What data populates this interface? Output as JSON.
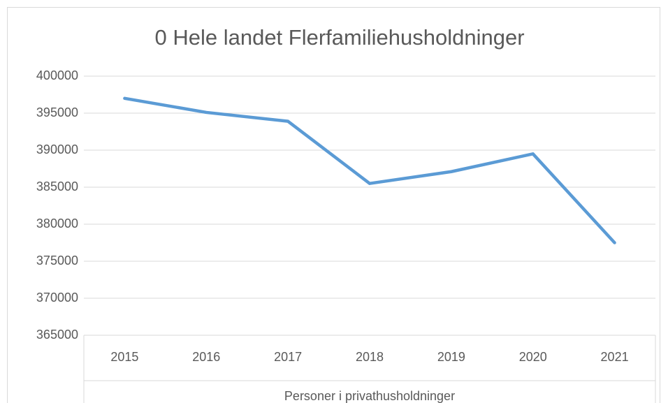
{
  "chart_data": {
    "type": "line",
    "title": "0 Hele landet Flerfamiliehusholdninger",
    "x_label": "Personer i privathusholdninger",
    "categories": [
      "2015",
      "2016",
      "2017",
      "2018",
      "2019",
      "2020",
      "2021"
    ],
    "series": [
      {
        "name": "Personer i privathusholdninger",
        "color": "#5b9bd5",
        "values": [
          397000,
          395100,
          393900,
          385500,
          387100,
          389500,
          377500
        ]
      }
    ],
    "ylim": [
      365000,
      400000
    ],
    "yticks": [
      365000,
      370000,
      375000,
      380000,
      385000,
      390000,
      395000,
      400000
    ],
    "grid": true
  }
}
